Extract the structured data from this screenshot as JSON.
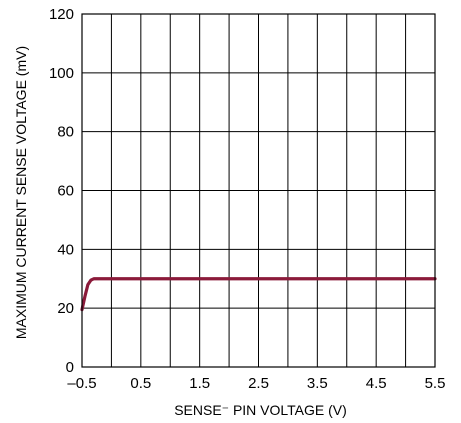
{
  "chart_data": {
    "type": "line",
    "title": "",
    "xlabel": "SENSE⁻ PIN VOLTAGE (V)",
    "ylabel": "MAXIMUM CURRENT SENSE VOLTAGE (mV)",
    "xlim": [
      -0.5,
      5.5
    ],
    "ylim": [
      0,
      120
    ],
    "xticks": [
      -0.5,
      0.5,
      1.5,
      2.5,
      3.5,
      4.5,
      5.5
    ],
    "xtick_labels": [
      "–0.5",
      "0.5",
      "1.5",
      "2.5",
      "3.5",
      "4.5",
      "5.5"
    ],
    "yticks": [
      0,
      20,
      40,
      60,
      80,
      100,
      120
    ],
    "ytick_labels": [
      "0",
      "20",
      "40",
      "60",
      "80",
      "100",
      "120"
    ],
    "xgrid_lines": [
      0.0,
      0.5,
      1.0,
      1.5,
      2.0,
      2.5,
      3.0,
      3.5,
      4.0,
      4.5,
      5.0
    ],
    "grid": true,
    "series": [
      {
        "color": "#8b1a3a",
        "x": [
          -0.5,
          -0.45,
          -0.4,
          -0.35,
          -0.3,
          -0.2,
          0.0,
          1.0,
          2.0,
          3.0,
          4.0,
          5.0,
          5.5
        ],
        "y": [
          19.5,
          24,
          28,
          29.5,
          30,
          30,
          30,
          30,
          30,
          30,
          30,
          30,
          30
        ]
      }
    ]
  }
}
